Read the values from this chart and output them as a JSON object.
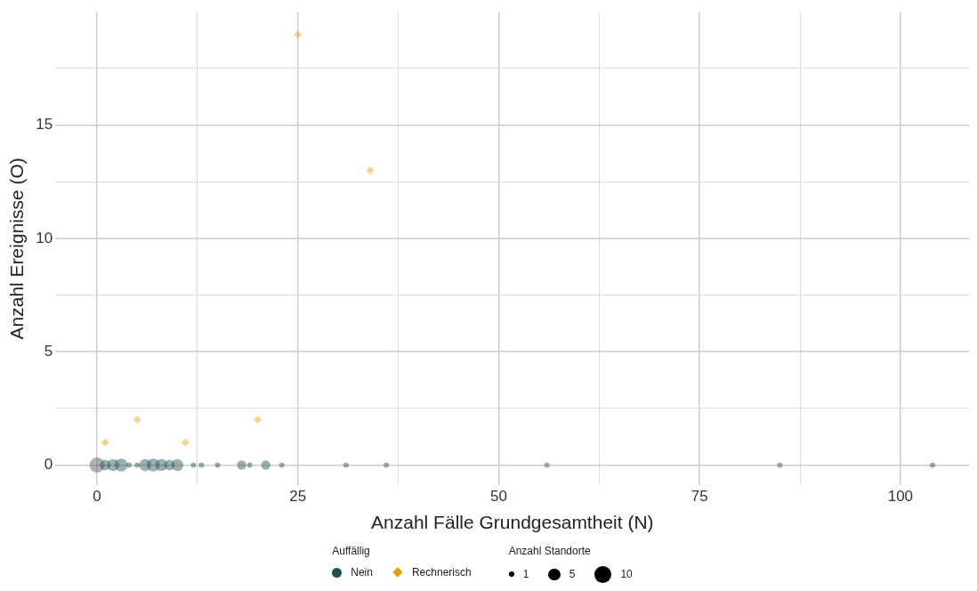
{
  "chart_data": {
    "type": "bubble",
    "xlabel": "Anzahl Fälle Grundgesamtheit (N)",
    "ylabel": "Anzahl Ereignisse (O)",
    "legend_title": "Auffällig",
    "annotations": [
      "Anzahl Standorte"
    ],
    "series": [
      {
        "name": "Nein",
        "color": "#1d5250",
        "marker": "circle",
        "colors": [
          "#555555",
          "#1d5250",
          "#1d5250",
          "#1d5250",
          "#1d5250",
          "#1d5250",
          "#1d5250",
          "#1d5250",
          "#1d5250",
          "#1d5250",
          "#1d5250",
          "#1d5250",
          "#1d5250",
          "#1d5250",
          "#1d5250",
          "#1d5250",
          "#1d5250",
          "#1d5250",
          "#1d5250",
          "#1d5250",
          "#1d5250",
          "#1d5250",
          "#1d5250"
        ],
        "x": [
          0,
          1,
          2,
          3,
          4,
          5,
          6,
          7,
          8,
          9,
          10,
          12,
          13,
          15,
          18,
          19,
          21,
          23,
          31,
          36,
          56,
          85,
          104
        ],
        "values": [
          0,
          0,
          0,
          0,
          0,
          0,
          0,
          0,
          0,
          0,
          0,
          0,
          0,
          0,
          0,
          0,
          0,
          0,
          0,
          0,
          0,
          0,
          0
        ],
        "sizes": [
          8,
          4,
          5,
          6,
          1,
          1,
          5,
          6,
          5,
          4,
          5,
          1,
          1,
          1,
          3,
          1,
          3,
          1,
          1,
          1,
          1,
          1,
          1
        ]
      },
      {
        "name": "Rechnerisch",
        "type": "scatter",
        "color": "#e69f00",
        "marker": "diamond",
        "x": [
          1,
          5,
          11,
          20,
          25,
          34
        ],
        "values": [
          1,
          2,
          1,
          2,
          19,
          13
        ]
      }
    ],
    "size_legend": [
      1,
      5,
      10
    ],
    "xlim": [
      -5.2,
      108.6
    ],
    "ylim": [
      -0.9,
      20
    ],
    "xticks": [
      0,
      {
        "value": 12.5,
        "label": null
      },
      25,
      {
        "value": 37.5,
        "label": null
      },
      50,
      {
        "value": 62.5,
        "label": null
      },
      75,
      {
        "value": 87.5,
        "label": null
      },
      100
    ],
    "yticks": [
      0,
      {
        "value": 2.5,
        "label": null
      },
      5,
      {
        "value": 7.5,
        "label": null
      },
      10,
      {
        "value": 12.5,
        "label": null
      },
      15,
      {
        "value": 17.5,
        "label": null
      }
    ],
    "grid": true,
    "legend": "bottom"
  }
}
